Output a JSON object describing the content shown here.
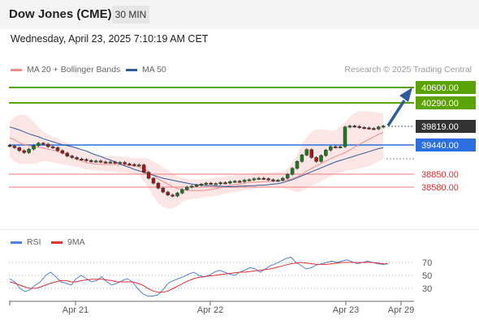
{
  "header": {
    "title": "Dow Jones (CME)",
    "timeframe": "30 MIN",
    "datetime": "Wednesday, April 23, 2025 7:10:19 AM CET"
  },
  "legend": {
    "ma20": "MA 20 + Bollinger Bands",
    "ma50": "MA 50",
    "ma20_color": "#f28c8c",
    "ma50_color": "#2e5b9c",
    "credit": "Research © 2025 Trading Central"
  },
  "rsi_legend": {
    "rsi": "RSI",
    "ma9": "9MA",
    "rsi_color": "#4f7fe0",
    "ma9_color": "#e03030"
  },
  "price_levels": [
    {
      "label": "40600.00",
      "value": 40600,
      "kind": "target",
      "color": "#5aa300"
    },
    {
      "label": "40290.00",
      "value": 40290,
      "kind": "resistance",
      "color": "#5aa300"
    },
    {
      "label": "39819.00",
      "value": 39819,
      "kind": "last",
      "color": "#333333"
    },
    {
      "label": "39440.00",
      "value": 39440,
      "kind": "pivot",
      "color": "#2b6fe0"
    },
    {
      "label": "38850.00",
      "value": 38850,
      "kind": "support",
      "color": "#e03030"
    },
    {
      "label": "38580.00",
      "value": 38580,
      "kind": "support",
      "color": "#e03030"
    }
  ],
  "x_axis": [
    "Apr 21",
    "Apr 22",
    "Apr 23",
    "Apr 29"
  ],
  "rsi_axis": [
    "70",
    "50",
    "30"
  ],
  "chart_data": [
    {
      "type": "candlestick",
      "title": "Dow Jones (CME)",
      "x_ticks": [
        "Apr 21",
        "Apr 22",
        "Apr 23",
        "Apr 29"
      ],
      "price_levels": [
        40600,
        40290,
        39819,
        39440,
        38850,
        38580
      ],
      "close": [
        39410,
        39380,
        39320,
        39280,
        39350,
        39420,
        39470,
        39450,
        39400,
        39380,
        39320,
        39270,
        39210,
        39180,
        39150,
        39140,
        39120,
        39100,
        39110,
        39090,
        39080,
        39090,
        39070,
        39080,
        39050,
        39040,
        39020,
        39030,
        38880,
        38760,
        38660,
        38560,
        38480,
        38420,
        38400,
        38460,
        38530,
        38580,
        38600,
        38620,
        38640,
        38660,
        38650,
        38650,
        38670,
        38660,
        38690,
        38700,
        38690,
        38720,
        38730,
        38750,
        38760,
        38750,
        38730,
        38710,
        38720,
        38760,
        38840,
        38960,
        39100,
        39230,
        39340,
        39180,
        39100,
        39220,
        39330,
        39400,
        39390,
        39400,
        39800,
        39820,
        39810,
        39790,
        39780,
        39770,
        39760,
        39800,
        39819
      ],
      "ma20": [
        39580,
        39540,
        39480,
        39440,
        39420,
        39400,
        39390,
        39370,
        39350,
        39330,
        39300,
        39270,
        39230,
        39190,
        39150,
        39110,
        39080,
        39060,
        39050,
        39040,
        39040,
        39040,
        39040,
        39030,
        39030,
        39020,
        39010,
        38990,
        38940,
        38880,
        38820,
        38750,
        38690,
        38640,
        38590,
        38550,
        38530,
        38520,
        38510,
        38510,
        38510,
        38520,
        38530,
        38550,
        38570,
        38590,
        38610,
        38630,
        38640,
        38660,
        38670,
        38680,
        38680,
        38690,
        38690,
        38700,
        38700,
        38710,
        38720,
        38750,
        38790,
        38840,
        38900,
        38960,
        39010,
        39060,
        39110,
        39160,
        39200,
        39240,
        39280,
        39330,
        39390,
        39450,
        39500,
        39550,
        39600,
        39650,
        39690
      ],
      "ma50": [
        39800,
        39770,
        39740,
        39700,
        39660,
        39630,
        39600,
        39560,
        39530,
        39500,
        39470,
        39440,
        39420,
        39400,
        39370,
        39340,
        39310,
        39270,
        39230,
        39200,
        39160,
        39130,
        39090,
        39050,
        39010,
        38980,
        38940,
        38910,
        38880,
        38850,
        38820,
        38790,
        38760,
        38740,
        38720,
        38700,
        38680,
        38660,
        38640,
        38630,
        38620,
        38610,
        38610,
        38600,
        38600,
        38590,
        38590,
        38590,
        38600,
        38600,
        38610,
        38610,
        38620,
        38620,
        38630,
        38640,
        38650,
        38670,
        38700,
        38730,
        38770,
        38810,
        38850,
        38890,
        38930,
        38970,
        39010,
        39050,
        39090,
        39120,
        39150,
        39180,
        39210,
        39240,
        39270,
        39300,
        39330,
        39360,
        39380
      ],
      "bollinger_upper": [
        39900,
        40000,
        40050,
        40050,
        40000,
        39900,
        39800,
        39700,
        39650,
        39600,
        39560,
        39520,
        39480,
        39430,
        39380,
        39330,
        39290,
        39260,
        39230,
        39220,
        39210,
        39210,
        39210,
        39200,
        39190,
        39180,
        39170,
        39170,
        39180,
        39150,
        39100,
        39050,
        38980,
        38920,
        38860,
        38800,
        38770,
        38750,
        38740,
        38740,
        38740,
        38750,
        38760,
        38780,
        38790,
        38800,
        38810,
        38820,
        38830,
        38840,
        38850,
        38860,
        38860,
        38870,
        38870,
        38880,
        38880,
        38890,
        38950,
        39080,
        39250,
        39450,
        39600,
        39700,
        39750,
        39750,
        39740,
        39730,
        39730,
        39800,
        39900,
        40000,
        40080,
        40120,
        40120,
        40110,
        40100,
        40090,
        40080
      ],
      "bollinger_lower": [
        39200,
        39100,
        39050,
        39050,
        39050,
        39050,
        39080,
        39100,
        39100,
        39080,
        39060,
        39040,
        39020,
        39000,
        38980,
        38960,
        38940,
        38930,
        38920,
        38910,
        38900,
        38900,
        38890,
        38880,
        38870,
        38860,
        38850,
        38830,
        38700,
        38550,
        38400,
        38250,
        38180,
        38150,
        38150,
        38200,
        38280,
        38320,
        38340,
        38350,
        38360,
        38380,
        38390,
        38400,
        38420,
        38440,
        38460,
        38480,
        38500,
        38520,
        38530,
        38550,
        38560,
        38570,
        38570,
        38570,
        38570,
        38560,
        38540,
        38500,
        38480,
        38500,
        38550,
        38600,
        38650,
        38700,
        38750,
        38800,
        38850,
        38880,
        38900,
        38920,
        38940,
        38960,
        38980,
        39000,
        39050,
        39100,
        39150
      ]
    },
    {
      "type": "line",
      "title": "RSI",
      "y_ticks": [
        70,
        50,
        30
      ],
      "series": [
        {
          "name": "RSI",
          "values": [
            45,
            40,
            30,
            25,
            28,
            35,
            40,
            50,
            55,
            48,
            40,
            38,
            35,
            45,
            50,
            45,
            40,
            42,
            48,
            40,
            35,
            38,
            42,
            45,
            40,
            30,
            22,
            18,
            18,
            20,
            28,
            38,
            42,
            45,
            48,
            52,
            55,
            50,
            48,
            50,
            55,
            58,
            55,
            52,
            50,
            55,
            58,
            62,
            60,
            55,
            60,
            65,
            68,
            72,
            76,
            78,
            70,
            65,
            60,
            62,
            66,
            68,
            70,
            72,
            70,
            72,
            74,
            71,
            68,
            70,
            72,
            70,
            68,
            67,
            68
          ]
        },
        {
          "name": "9MA",
          "values": [
            40,
            38,
            35,
            32,
            30,
            30,
            32,
            35,
            38,
            40,
            42,
            42,
            40,
            40,
            42,
            43,
            44,
            44,
            44,
            43,
            42,
            40,
            40,
            40,
            40,
            38,
            35,
            30,
            26,
            24,
            24,
            26,
            30,
            34,
            38,
            42,
            45,
            47,
            48,
            49,
            50,
            51,
            52,
            53,
            54,
            55,
            55,
            56,
            57,
            58,
            59,
            60,
            62,
            64,
            66,
            68,
            69,
            70,
            69,
            68,
            67,
            67,
            67,
            68,
            69,
            70,
            70,
            70,
            70,
            70,
            70,
            70,
            69,
            68,
            68
          ]
        }
      ]
    }
  ]
}
